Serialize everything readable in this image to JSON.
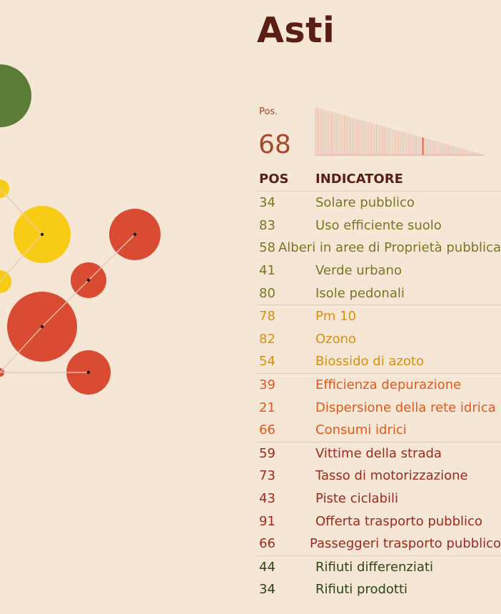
{
  "city": "Asti",
  "rank": {
    "label": "Pos.",
    "value": "68",
    "highlight_position": 68,
    "total_positions": 106
  },
  "table": {
    "headers": {
      "pos": "POS",
      "indicator": "INDICATORE"
    },
    "groups": [
      {
        "color": "#7d7323",
        "rows": [
          {
            "pos": "34",
            "name": "Solare pubblico"
          },
          {
            "pos": "83",
            "name": "Uso efficiente suolo"
          },
          {
            "pos": "58",
            "name": "Alberi in aree di Proprietà pubblica"
          },
          {
            "pos": "41",
            "name": "Verde urbano"
          },
          {
            "pos": "80",
            "name": "Isole pedonali"
          }
        ]
      },
      {
        "color": "#d9900f",
        "rows": [
          {
            "pos": "78",
            "name": "Pm 10"
          },
          {
            "pos": "82",
            "name": "Ozono"
          },
          {
            "pos": "54",
            "name": "Biossido di azoto"
          }
        ]
      },
      {
        "color": "#de5a1f",
        "rows": [
          {
            "pos": "39",
            "name": "Efficienza depurazione"
          },
          {
            "pos": "21",
            "name": "Dispersione della rete idrica"
          },
          {
            "pos": "66",
            "name": "Consumi idrici"
          }
        ]
      },
      {
        "color": "#9c2a1e",
        "rows": [
          {
            "pos": "59",
            "name": "Vittime della strada"
          },
          {
            "pos": "73",
            "name": "Tasso di motorizzazione"
          },
          {
            "pos": "43",
            "name": "Piste ciclabili"
          },
          {
            "pos": "91",
            "name": "Offerta trasporto pubblico"
          },
          {
            "pos": "66",
            "name": "Passeggeri trasporto pubblico"
          }
        ]
      },
      {
        "color": "#2e4416",
        "rows": [
          {
            "pos": "44",
            "name": "Rifiuti differenziati"
          },
          {
            "pos": "34",
            "name": "Rifiuti prodotti"
          }
        ]
      }
    ]
  },
  "chart_data": {
    "type": "scatter",
    "colors": {
      "green": "#5b7c35",
      "yellow": "#f8cb17",
      "red": "#d94b32",
      "link": "#e6d2c0",
      "dot": "#111111"
    }
  }
}
